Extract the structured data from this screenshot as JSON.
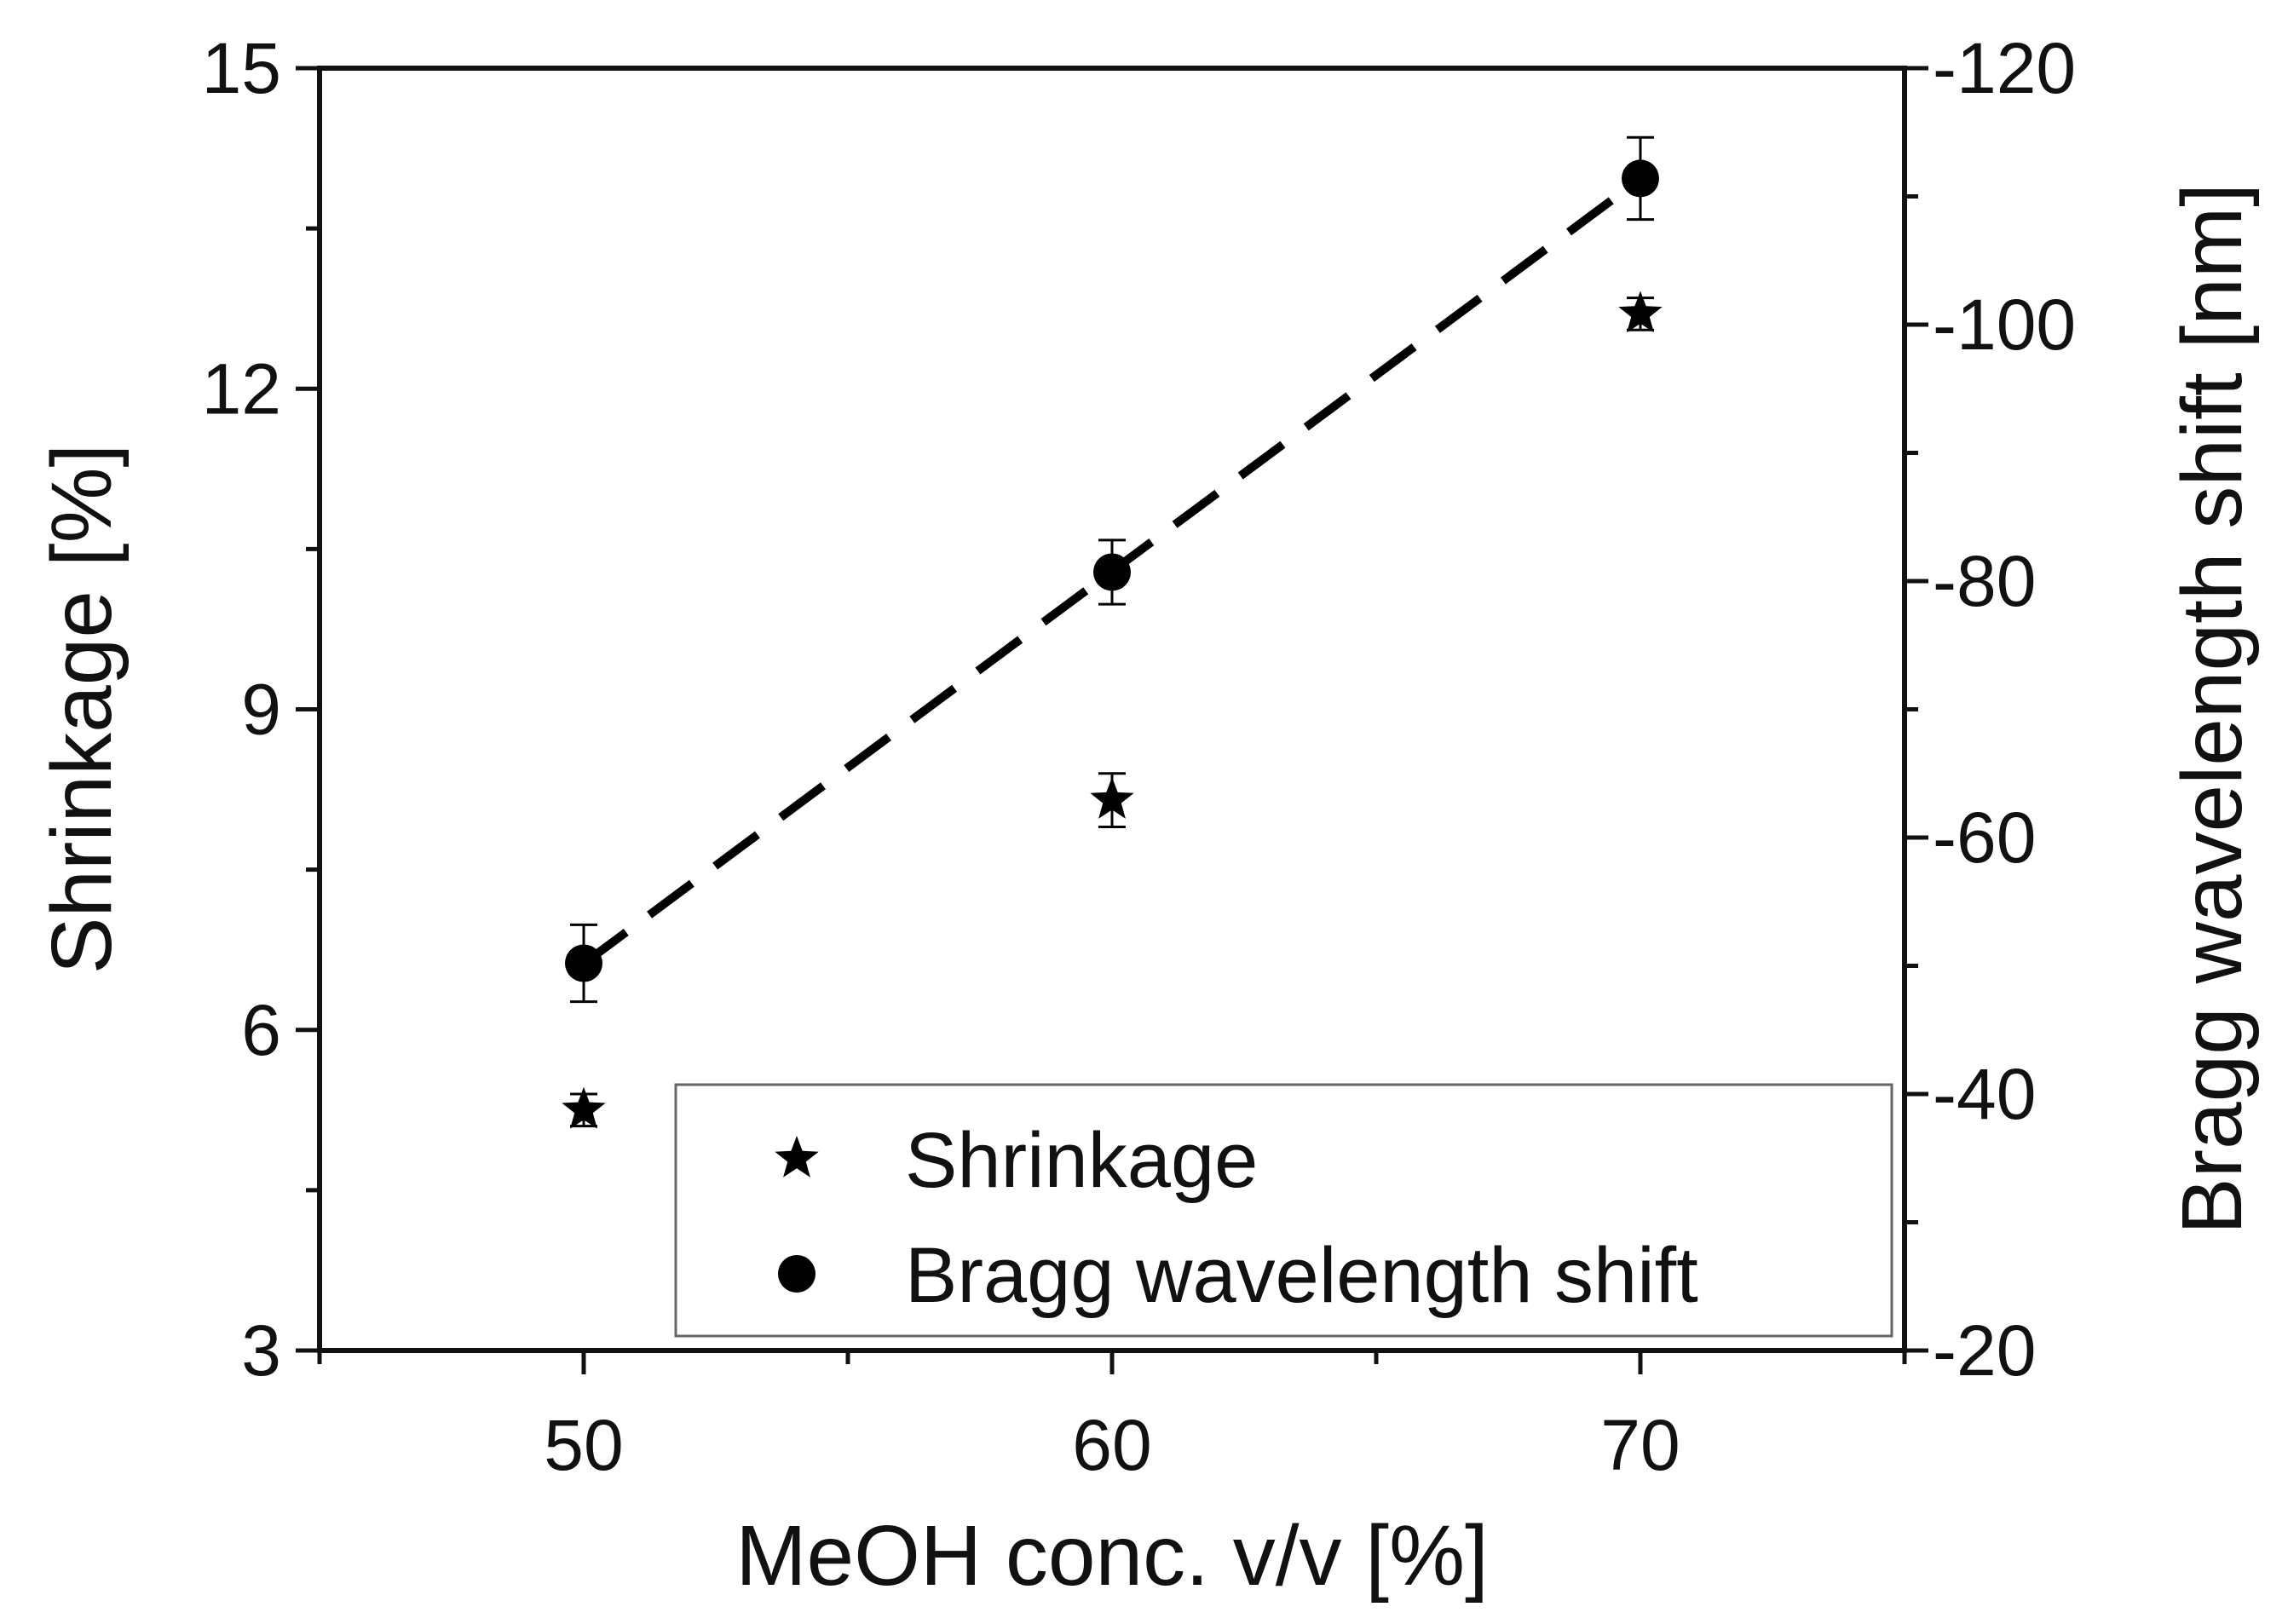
{
  "chart_data": {
    "type": "scatter",
    "title": "",
    "xlabel": "MeOH conc. v/v [%]",
    "ylabel": "Shrinkage [%]",
    "y2label": "Bragg wavelength shift [nm]",
    "xlim": [
      45,
      75
    ],
    "ylim": [
      3,
      15
    ],
    "y2lim": [
      -20,
      -120
    ],
    "x_ticks": [
      "50",
      "60",
      "70"
    ],
    "y_ticks": [
      "3",
      "6",
      "9",
      "12",
      "15"
    ],
    "y2_ticks": [
      "-20",
      "-40",
      "-60",
      "-80",
      "-100",
      "-120"
    ],
    "grid": false,
    "legend_position": "bottom-right",
    "colors": {
      "series": "#000000"
    },
    "series": [
      {
        "name": "Shrinkage",
        "axis": "left",
        "marker": "star",
        "x": [
          50,
          60,
          70
        ],
        "y": [
          5.25,
          8.15,
          12.7
        ],
        "error": [
          0.15,
          0.25,
          0.15
        ]
      },
      {
        "name": "Bragg wavelength shift",
        "axis": "right",
        "marker": "circle",
        "x": [
          50,
          60,
          70
        ],
        "y": [
          -50.2,
          -80.7,
          -111.4
        ],
        "error": [
          3.0,
          2.5,
          3.2
        ],
        "fit": "dashed-linear"
      }
    ]
  }
}
